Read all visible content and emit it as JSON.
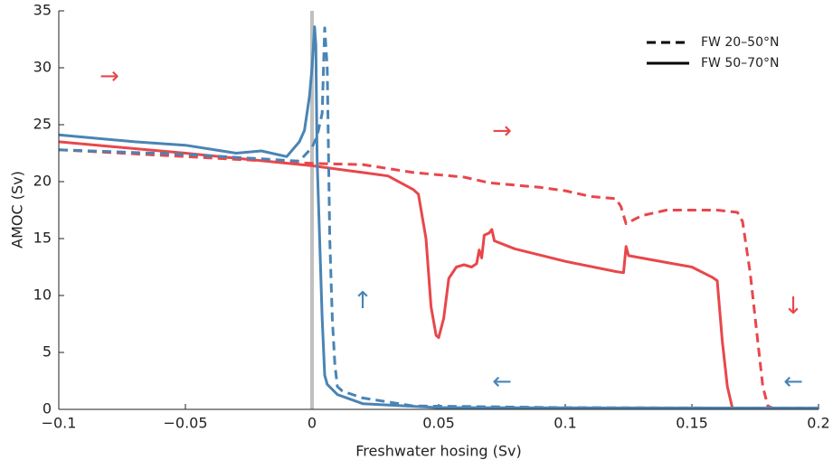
{
  "chart_data": {
    "type": "line",
    "xlabel": "Freshwater hosing (Sv)",
    "ylabel": "AMOC (Sv)",
    "xlim": [
      -0.1,
      0.2
    ],
    "ylim": [
      0,
      35
    ],
    "xticks": [
      {
        "value": -0.1,
        "label": "−0.1"
      },
      {
        "value": -0.05,
        "label": "−0.05"
      },
      0,
      0.05,
      0.1,
      0.15,
      0.2
    ],
    "yticks": [
      0,
      5,
      10,
      15,
      20,
      25,
      30,
      35
    ],
    "vline": {
      "x": 0,
      "color": "#c0c0c0"
    },
    "legend_entries": [
      {
        "label": "FW 20–50°N",
        "dashed": true
      },
      {
        "label": "FW 50–70°N",
        "dashed": false
      }
    ],
    "legend_color": "#000000",
    "series": [
      {
        "color": "#e8474b",
        "dashed": false,
        "x": [
          -0.1,
          -0.05,
          0,
          0.02,
          0.03,
          0.04,
          0.042,
          0.045,
          0.047,
          0.049,
          0.05,
          0.052,
          0.054,
          0.057,
          0.06,
          0.063,
          0.065,
          0.066,
          0.067,
          0.068,
          0.07,
          0.071,
          0.072,
          0.08,
          0.1,
          0.12,
          0.123,
          0.124,
          0.125,
          0.14,
          0.15,
          0.158,
          0.16,
          0.162,
          0.164,
          0.166,
          0.2
        ],
        "values": [
          23.5,
          22.5,
          21.4,
          20.8,
          20.5,
          19.3,
          18.9,
          15,
          9,
          6.5,
          6.3,
          8,
          11.5,
          12.5,
          12.7,
          12.5,
          12.8,
          14,
          13.3,
          15.3,
          15.5,
          15.8,
          14.8,
          14.1,
          13,
          12.1,
          12,
          14.3,
          13.5,
          12.9,
          12.5,
          11.6,
          11.3,
          6,
          2,
          0.1,
          0.1
        ]
      },
      {
        "color": "#e8474b",
        "dashed": true,
        "x": [
          -0.1,
          -0.05,
          0,
          0.02,
          0.04,
          0.06,
          0.07,
          0.09,
          0.1,
          0.11,
          0.12,
          0.122,
          0.124,
          0.13,
          0.14,
          0.15,
          0.16,
          0.168,
          0.17,
          0.173,
          0.176,
          0.178,
          0.18,
          0.182,
          0.2
        ],
        "values": [
          22.8,
          22.2,
          21.6,
          21.5,
          20.8,
          20.4,
          19.9,
          19.5,
          19.2,
          18.7,
          18.5,
          17.8,
          16.3,
          17,
          17.5,
          17.5,
          17.5,
          17.3,
          16.5,
          12,
          6,
          2,
          0.3,
          0.1,
          0.1
        ]
      },
      {
        "color": "#4a84b4",
        "dashed": false,
        "x": [
          -0.1,
          -0.07,
          -0.05,
          -0.03,
          -0.02,
          -0.01,
          -0.005,
          -0.003,
          -0.001,
          0,
          0.001,
          0.0015,
          0.002,
          0.003,
          0.004,
          0.005,
          0.006,
          0.01,
          0.02,
          0.05,
          0.2
        ],
        "values": [
          24.1,
          23.5,
          23.2,
          22.5,
          22.7,
          22.2,
          23.5,
          24.5,
          27.5,
          30,
          33.6,
          32,
          22,
          15,
          8,
          3,
          2.2,
          1.3,
          0.5,
          0.15,
          0.1
        ]
      },
      {
        "color": "#4a84b4",
        "dashed": true,
        "x": [
          -0.1,
          -0.05,
          -0.02,
          -0.005,
          0,
          0.002,
          0.004,
          0.005,
          0.006,
          0.007,
          0.008,
          0.009,
          0.01,
          0.012,
          0.02,
          0.04,
          0.1,
          0.2
        ],
        "values": [
          22.8,
          22.4,
          22,
          21.8,
          23,
          24,
          26,
          33.5,
          30,
          15,
          8,
          4,
          2,
          1.6,
          1,
          0.3,
          0.15,
          0.1
        ]
      }
    ],
    "annotations": [
      {
        "text": "→",
        "x": -0.08,
        "y": 29.2,
        "color": "#e8474b"
      },
      {
        "text": "→",
        "x": 0.075,
        "y": 24.4,
        "color": "#e8474b"
      },
      {
        "text": "↑",
        "x": 0.02,
        "y": 9.5,
        "color": "#4a84b4"
      },
      {
        "text": "↓",
        "x": 0.19,
        "y": 9,
        "color": "#e8474b"
      },
      {
        "text": "←",
        "x": 0.075,
        "y": 2.4,
        "color": "#4a84b4"
      },
      {
        "text": "←",
        "x": 0.19,
        "y": 2.4,
        "color": "#4a84b4"
      }
    ]
  }
}
